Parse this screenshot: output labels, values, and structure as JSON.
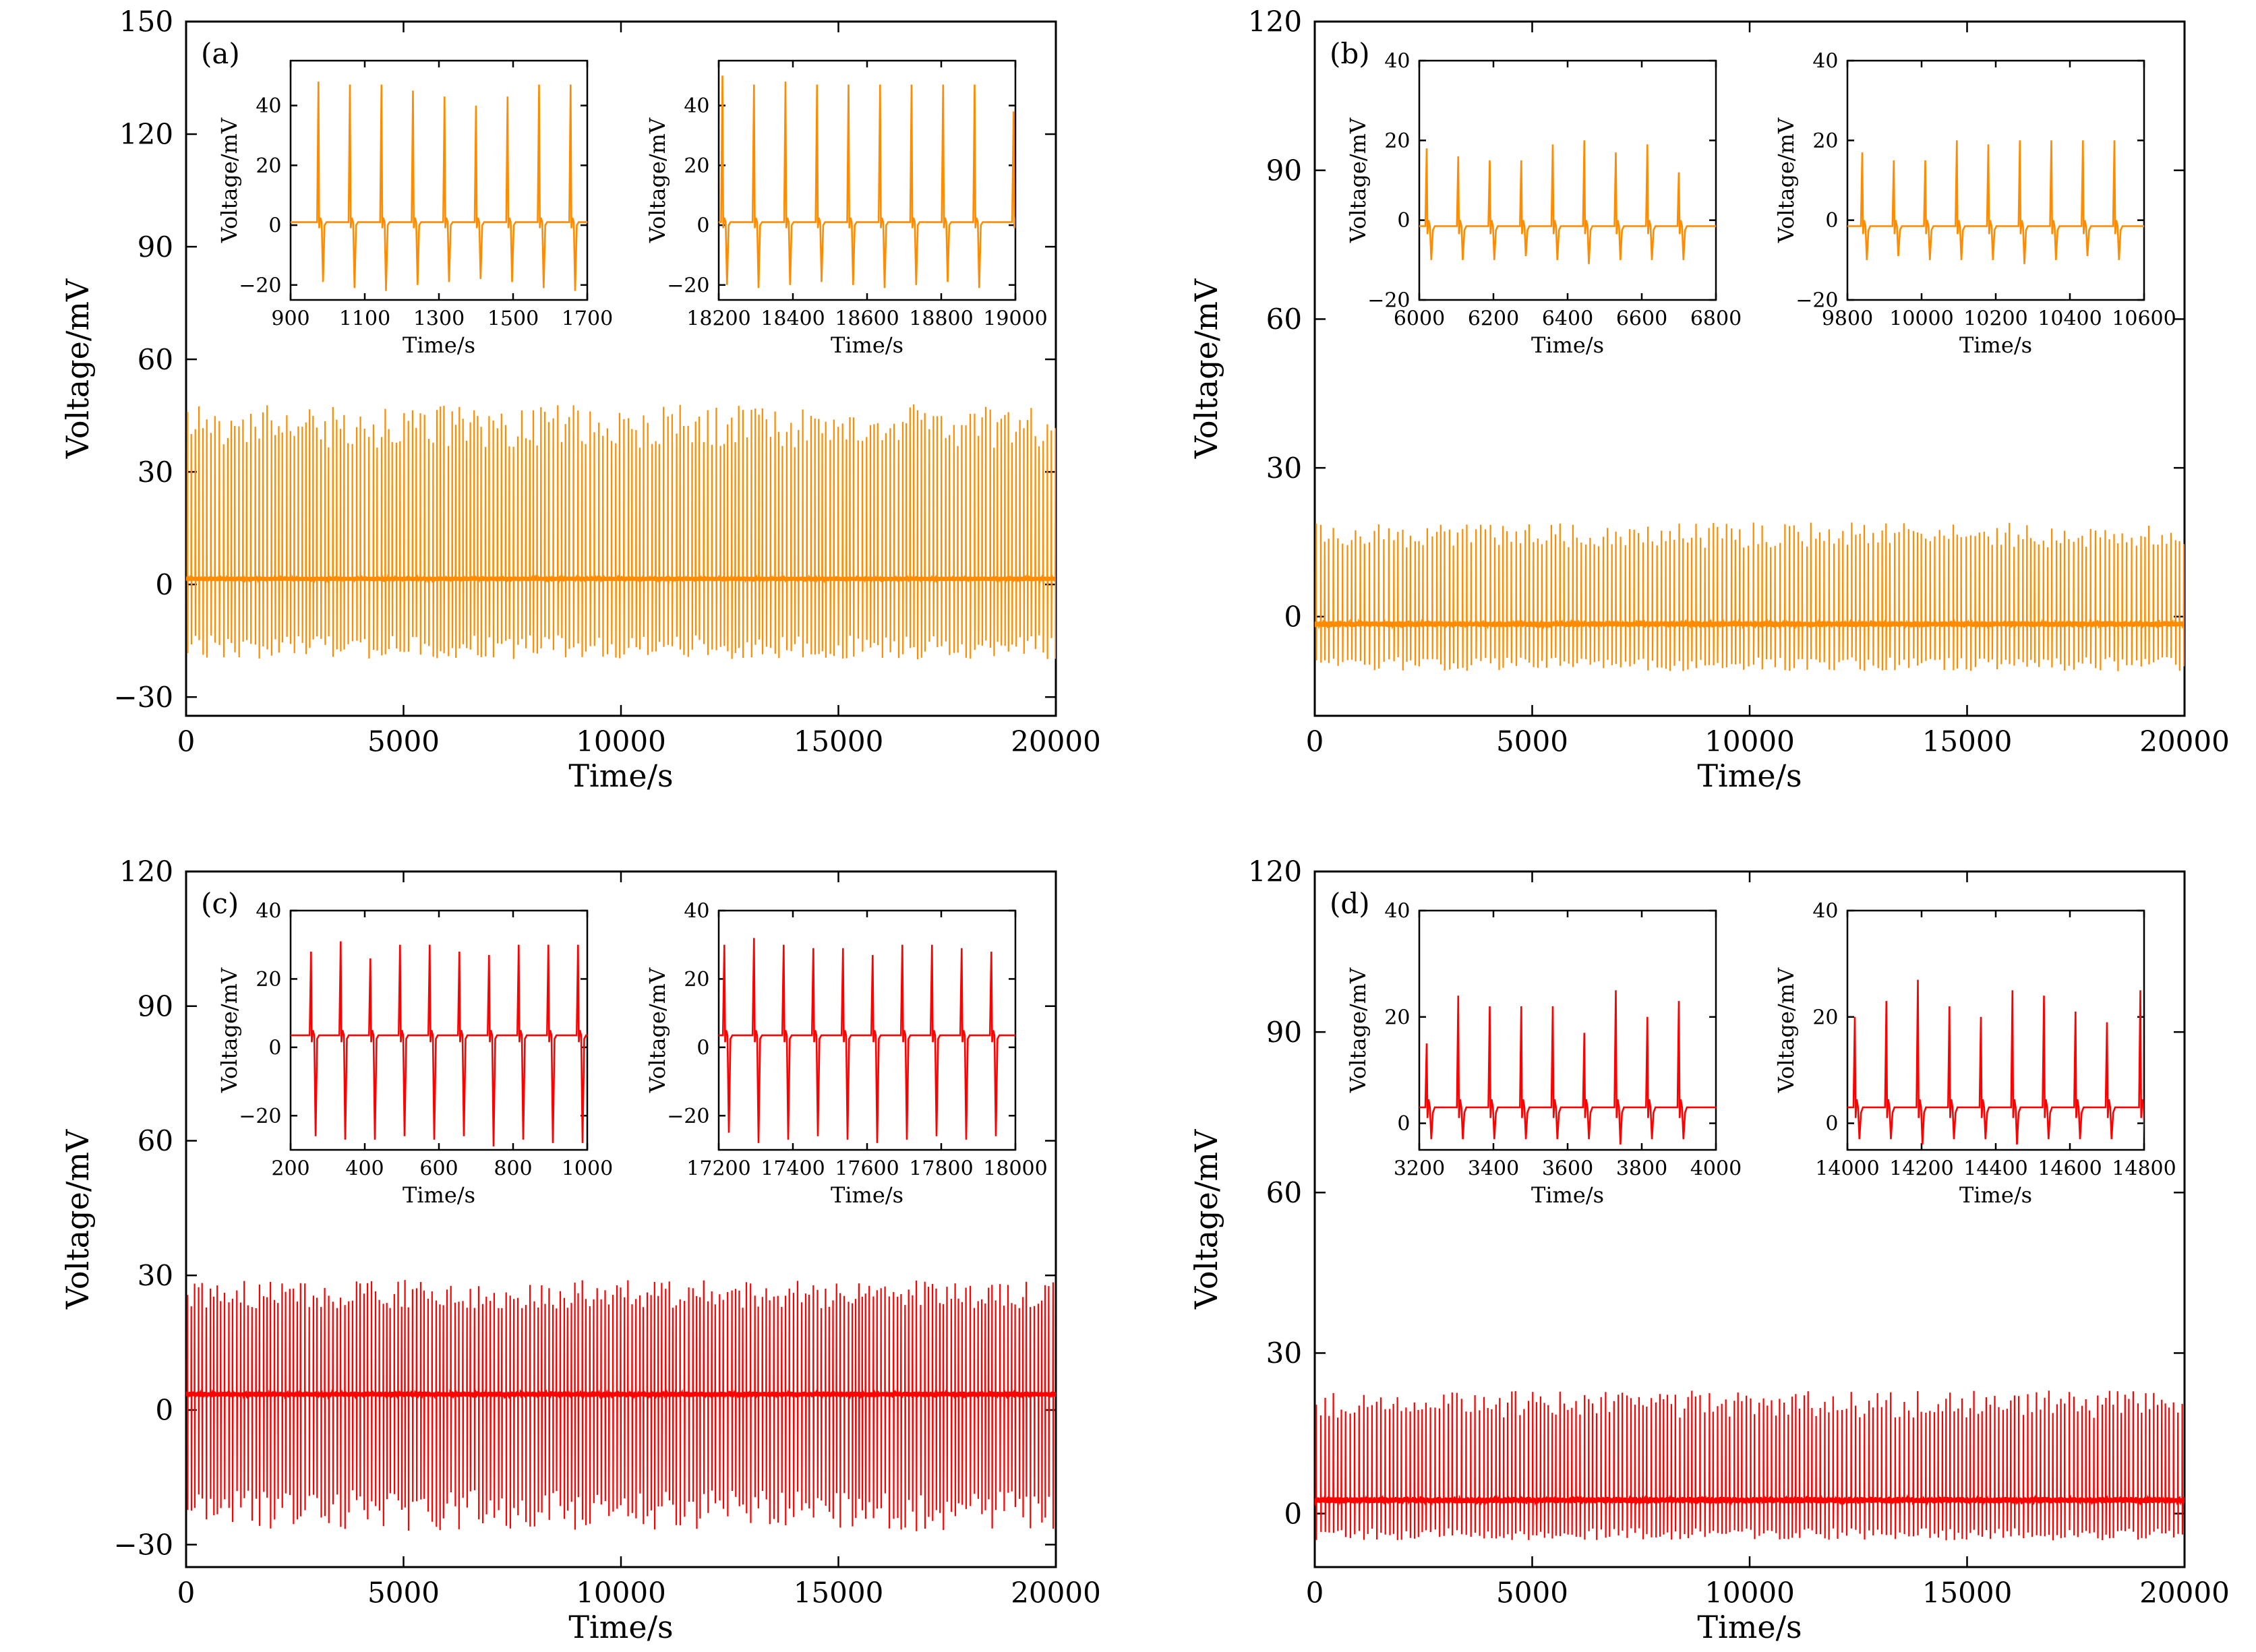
{
  "figure": {
    "colors": {
      "orange": "#ff8c00",
      "red": "#ff0000",
      "axis": "#000000"
    }
  },
  "chart_data": [
    {
      "type": "line",
      "panel_label": "(a)",
      "color": "#ff8c00",
      "xlabel": "Time/s",
      "ylabel": "Voltage/mV",
      "xlim": [
        0,
        20000
      ],
      "ylim": [
        -35,
        150
      ],
      "xticks": [
        0,
        5000,
        10000,
        15000,
        20000
      ],
      "xtick_labels": [
        "0",
        "5000",
        "10000",
        "15000",
        "20000"
      ],
      "yticks": [
        -30,
        0,
        30,
        60,
        90,
        120,
        150
      ],
      "ytick_labels": [
        "−30",
        "0",
        "30",
        "60",
        "90",
        "120",
        "150"
      ],
      "signal": {
        "spike_interval_s": 85,
        "peak_mV": 48,
        "trough_mV": -20,
        "baseline_mV": 1.5
      },
      "insets": [
        {
          "xlabel": "Time/s",
          "ylabel": "Voltage/mV",
          "xlim": [
            900,
            1700
          ],
          "ylim": [
            -25,
            55
          ],
          "xticks": [
            900,
            1100,
            1300,
            1500,
            1700
          ],
          "xtick_labels": [
            "900",
            "1100",
            "1300",
            "1500",
            "1700"
          ],
          "yticks": [
            -20,
            0,
            20,
            40
          ],
          "ytick_labels": [
            "−20",
            "0",
            "20",
            "40"
          ],
          "baseline_mV": 1,
          "spikes": [
            {
              "t": 975,
              "peak": 48,
              "trough": -19
            },
            {
              "t": 1060,
              "peak": 47,
              "trough": -21
            },
            {
              "t": 1145,
              "peak": 47,
              "trough": -22
            },
            {
              "t": 1230,
              "peak": 45,
              "trough": -20
            },
            {
              "t": 1315,
              "peak": 43,
              "trough": -19
            },
            {
              "t": 1400,
              "peak": 40,
              "trough": -18
            },
            {
              "t": 1485,
              "peak": 43,
              "trough": -19
            },
            {
              "t": 1570,
              "peak": 47,
              "trough": -21
            },
            {
              "t": 1655,
              "peak": 47,
              "trough": -22
            }
          ]
        },
        {
          "xlabel": "Time/s",
          "ylabel": "Voltage/mV",
          "xlim": [
            18200,
            19000
          ],
          "ylim": [
            -25,
            55
          ],
          "xticks": [
            18200,
            18400,
            18600,
            18800,
            19000
          ],
          "xtick_labels": [
            "18200",
            "18400",
            "18600",
            "18800",
            "19000"
          ],
          "yticks": [
            -20,
            0,
            20,
            40
          ],
          "ytick_labels": [
            "−20",
            "0",
            "20",
            "40"
          ],
          "baseline_mV": 1,
          "spikes": [
            {
              "t": 18210,
              "peak": 50,
              "trough": -20
            },
            {
              "t": 18295,
              "peak": 47,
              "trough": -21
            },
            {
              "t": 18380,
              "peak": 48,
              "trough": -20
            },
            {
              "t": 18465,
              "peak": 47,
              "trough": -19
            },
            {
              "t": 18550,
              "peak": 47,
              "trough": -20
            },
            {
              "t": 18635,
              "peak": 47,
              "trough": -21
            },
            {
              "t": 18720,
              "peak": 47,
              "trough": -20
            },
            {
              "t": 18805,
              "peak": 47,
              "trough": -19
            },
            {
              "t": 18890,
              "peak": 47,
              "trough": -21
            },
            {
              "t": 18995,
              "peak": 38,
              "trough": -21
            }
          ]
        }
      ]
    },
    {
      "type": "line",
      "panel_label": "(b)",
      "color": "#ff8c00",
      "xlabel": "Time/s",
      "ylabel": "Voltage/mV",
      "xlim": [
        0,
        20000
      ],
      "ylim": [
        -20,
        120
      ],
      "xticks": [
        0,
        5000,
        10000,
        15000,
        20000
      ],
      "xtick_labels": [
        "0",
        "5000",
        "10000",
        "15000",
        "20000"
      ],
      "yticks": [
        0,
        30,
        60,
        90,
        120
      ],
      "ytick_labels": [
        "0",
        "30",
        "60",
        "90",
        "120"
      ],
      "signal": {
        "spike_interval_s": 95,
        "peak_mV": 19,
        "trough_mV": -11,
        "baseline_mV": -1.5
      },
      "insets": [
        {
          "xlabel": "Time/s",
          "ylabel": "Voltage/mV",
          "xlim": [
            6000,
            6800
          ],
          "ylim": [
            -20,
            40
          ],
          "xticks": [
            6000,
            6200,
            6400,
            6600,
            6800
          ],
          "xtick_labels": [
            "6000",
            "6200",
            "6400",
            "6600",
            "6800"
          ],
          "yticks": [
            -20,
            0,
            20,
            40
          ],
          "ytick_labels": [
            "−20",
            "0",
            "20",
            "40"
          ],
          "baseline_mV": -1.5,
          "spikes": [
            {
              "t": 6020,
              "peak": 18,
              "trough": -10
            },
            {
              "t": 6105,
              "peak": 16,
              "trough": -10
            },
            {
              "t": 6190,
              "peak": 15,
              "trough": -10
            },
            {
              "t": 6275,
              "peak": 15,
              "trough": -9
            },
            {
              "t": 6360,
              "peak": 19,
              "trough": -10
            },
            {
              "t": 6445,
              "peak": 20,
              "trough": -11
            },
            {
              "t": 6530,
              "peak": 17,
              "trough": -10
            },
            {
              "t": 6615,
              "peak": 19,
              "trough": -10
            },
            {
              "t": 6700,
              "peak": 12,
              "trough": -10
            }
          ]
        },
        {
          "xlabel": "Time/s",
          "ylabel": "Voltage/mV",
          "xlim": [
            9800,
            10600
          ],
          "ylim": [
            -20,
            40
          ],
          "xticks": [
            9800,
            10000,
            10200,
            10400,
            10600
          ],
          "xtick_labels": [
            "9800",
            "10000",
            "10200",
            "10400",
            "10600"
          ],
          "yticks": [
            -20,
            0,
            20,
            40
          ],
          "ytick_labels": [
            "−20",
            "0",
            "20",
            "40"
          ],
          "baseline_mV": -1.5,
          "spikes": [
            {
              "t": 9840,
              "peak": 17,
              "trough": -10
            },
            {
              "t": 9925,
              "peak": 15,
              "trough": -9
            },
            {
              "t": 10010,
              "peak": 15,
              "trough": -10
            },
            {
              "t": 10095,
              "peak": 20,
              "trough": -10
            },
            {
              "t": 10180,
              "peak": 19,
              "trough": -10
            },
            {
              "t": 10265,
              "peak": 20,
              "trough": -11
            },
            {
              "t": 10350,
              "peak": 20,
              "trough": -10
            },
            {
              "t": 10435,
              "peak": 20,
              "trough": -9
            },
            {
              "t": 10520,
              "peak": 20,
              "trough": -10
            }
          ]
        }
      ]
    },
    {
      "type": "line",
      "panel_label": "(c)",
      "color": "#ff0000",
      "xlabel": "Time/s",
      "ylabel": "Voltage/mV",
      "xlim": [
        0,
        20000
      ],
      "ylim": [
        -35,
        120
      ],
      "xticks": [
        0,
        5000,
        10000,
        15000,
        20000
      ],
      "xtick_labels": [
        "0",
        "5000",
        "10000",
        "15000",
        "20000"
      ],
      "yticks": [
        -30,
        0,
        30,
        60,
        90,
        120
      ],
      "ytick_labels": [
        "−30",
        "0",
        "30",
        "60",
        "90",
        "120"
      ],
      "signal": {
        "spike_interval_s": 82,
        "peak_mV": 29,
        "trough_mV": -27,
        "baseline_mV": 3.5
      },
      "insets": [
        {
          "xlabel": "Time/s",
          "ylabel": "Voltage/mV",
          "xlim": [
            200,
            1000
          ],
          "ylim": [
            -30,
            40
          ],
          "xticks": [
            200,
            400,
            600,
            800,
            1000
          ],
          "xtick_labels": [
            "200",
            "400",
            "600",
            "800",
            "1000"
          ],
          "yticks": [
            -20,
            0,
            20,
            40
          ],
          "ytick_labels": [
            "−20",
            "0",
            "20",
            "40"
          ],
          "baseline_mV": 3.5,
          "spikes": [
            {
              "t": 255,
              "peak": 28,
              "trough": -26
            },
            {
              "t": 335,
              "peak": 31,
              "trough": -27
            },
            {
              "t": 415,
              "peak": 26,
              "trough": -27
            },
            {
              "t": 495,
              "peak": 30,
              "trough": -26
            },
            {
              "t": 575,
              "peak": 30,
              "trough": -27
            },
            {
              "t": 655,
              "peak": 28,
              "trough": -26
            },
            {
              "t": 735,
              "peak": 27,
              "trough": -29
            },
            {
              "t": 815,
              "peak": 30,
              "trough": -27
            },
            {
              "t": 895,
              "peak": 30,
              "trough": -28
            },
            {
              "t": 975,
              "peak": 30,
              "trough": -28
            }
          ]
        },
        {
          "xlabel": "Time/s",
          "ylabel": "Voltage/mV",
          "xlim": [
            17200,
            18000
          ],
          "ylim": [
            -30,
            40
          ],
          "xticks": [
            17200,
            17400,
            17600,
            17800,
            18000
          ],
          "xtick_labels": [
            "17200",
            "17400",
            "17600",
            "17800",
            "18000"
          ],
          "yticks": [
            -20,
            0,
            20,
            40
          ],
          "ytick_labels": [
            "−20",
            "0",
            "20",
            "40"
          ],
          "baseline_mV": 3.5,
          "spikes": [
            {
              "t": 17215,
              "peak": 30,
              "trough": -25
            },
            {
              "t": 17295,
              "peak": 32,
              "trough": -28
            },
            {
              "t": 17375,
              "peak": 30,
              "trough": -27
            },
            {
              "t": 17455,
              "peak": 29,
              "trough": -26
            },
            {
              "t": 17535,
              "peak": 29,
              "trough": -27
            },
            {
              "t": 17615,
              "peak": 27,
              "trough": -28
            },
            {
              "t": 17695,
              "peak": 30,
              "trough": -27
            },
            {
              "t": 17775,
              "peak": 30,
              "trough": -26
            },
            {
              "t": 17855,
              "peak": 29,
              "trough": -27
            },
            {
              "t": 17935,
              "peak": 28,
              "trough": -26
            }
          ]
        }
      ]
    },
    {
      "type": "line",
      "panel_label": "(d)",
      "color": "#ff0000",
      "xlabel": "Time/s",
      "ylabel": "Voltage/mV",
      "xlim": [
        0,
        20000
      ],
      "ylim": [
        -10,
        120
      ],
      "xticks": [
        0,
        5000,
        10000,
        15000,
        20000
      ],
      "xtick_labels": [
        "0",
        "5000",
        "10000",
        "15000",
        "20000"
      ],
      "yticks": [
        0,
        30,
        60,
        90,
        120
      ],
      "ytick_labels": [
        "0",
        "30",
        "60",
        "90",
        "120"
      ],
      "signal": {
        "spike_interval_s": 90,
        "peak_mV": 23,
        "trough_mV": -5,
        "baseline_mV": 2.5
      },
      "insets": [
        {
          "xlabel": "Time/s",
          "ylabel": "Voltage/mV",
          "xlim": [
            3200,
            4000
          ],
          "ylim": [
            -5,
            40
          ],
          "xticks": [
            3200,
            3400,
            3600,
            3800,
            4000
          ],
          "xtick_labels": [
            "3200",
            "3400",
            "3600",
            "3800",
            "4000"
          ],
          "yticks": [
            0,
            20,
            40
          ],
          "ytick_labels": [
            "0",
            "20",
            "40"
          ],
          "baseline_mV": 3,
          "spikes": [
            {
              "t": 3220,
              "peak": 15,
              "trough": -3
            },
            {
              "t": 3305,
              "peak": 24,
              "trough": -3
            },
            {
              "t": 3390,
              "peak": 22,
              "trough": -3
            },
            {
              "t": 3475,
              "peak": 22,
              "trough": -3
            },
            {
              "t": 3560,
              "peak": 22,
              "trough": -3
            },
            {
              "t": 3645,
              "peak": 17,
              "trough": -3
            },
            {
              "t": 3730,
              "peak": 25,
              "trough": -4
            },
            {
              "t": 3815,
              "peak": 20,
              "trough": -3
            },
            {
              "t": 3900,
              "peak": 23,
              "trough": -3
            }
          ]
        },
        {
          "xlabel": "Time/s",
          "ylabel": "Voltage/mV",
          "xlim": [
            14000,
            14800
          ],
          "ylim": [
            -5,
            40
          ],
          "xticks": [
            14000,
            14200,
            14400,
            14600,
            14800
          ],
          "xtick_labels": [
            "14000",
            "14200",
            "14400",
            "14600",
            "14800"
          ],
          "yticks": [
            0,
            20,
            40
          ],
          "ytick_labels": [
            "0",
            "20",
            "40"
          ],
          "baseline_mV": 3,
          "spikes": [
            {
              "t": 14020,
              "peak": 20,
              "trough": -3
            },
            {
              "t": 14105,
              "peak": 23,
              "trough": -3
            },
            {
              "t": 14190,
              "peak": 27,
              "trough": -4
            },
            {
              "t": 14275,
              "peak": 22,
              "trough": -3
            },
            {
              "t": 14360,
              "peak": 20,
              "trough": -3
            },
            {
              "t": 14445,
              "peak": 25,
              "trough": -4
            },
            {
              "t": 14530,
              "peak": 24,
              "trough": -3
            },
            {
              "t": 14615,
              "peak": 21,
              "trough": -3
            },
            {
              "t": 14700,
              "peak": 19,
              "trough": -3
            },
            {
              "t": 14790,
              "peak": 25,
              "trough": -3
            }
          ]
        }
      ]
    }
  ]
}
